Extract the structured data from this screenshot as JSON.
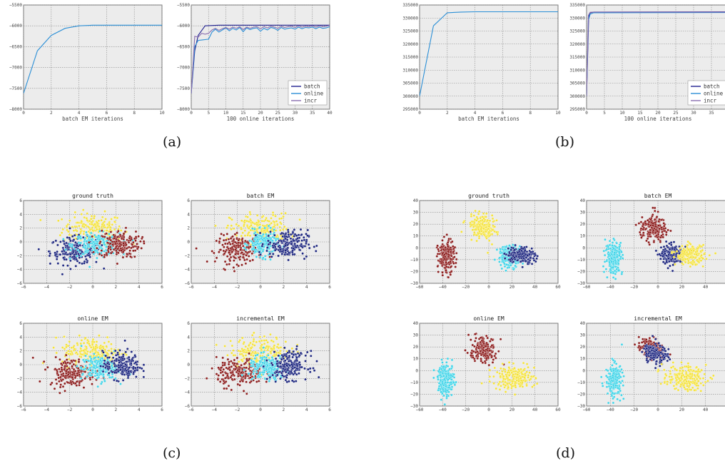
{
  "panel_labels": [
    "(a)",
    "(b)",
    "(c)",
    "(d)"
  ],
  "legend_labels": [
    "batch",
    "online",
    "incr"
  ],
  "colors": {
    "batch": "#1f1f8f",
    "online": "#2b8fd6",
    "incr": "#8a6fb0",
    "cluster_yellow": "#f4e23a",
    "cluster_cyan": "#3fd4e8",
    "cluster_navy": "#1a237e",
    "cluster_maroon": "#8b1a1a",
    "plot_bg": "#ececec",
    "grid": "#888888"
  },
  "chart_data": [
    {
      "id": "a-left",
      "type": "line",
      "xlabel": "batch EM iterations",
      "ylabel": "",
      "xlim": [
        0,
        10
      ],
      "ylim": [
        -8000,
        -5500
      ],
      "xticks": [
        0,
        2,
        4,
        6,
        8,
        10
      ],
      "yticks": [
        -8000,
        -7500,
        -7000,
        -6500,
        -6000,
        -5500
      ],
      "series": [
        {
          "key": "online",
          "x": [
            0,
            1,
            2,
            3,
            4,
            5,
            6,
            7,
            8,
            9,
            10
          ],
          "y": [
            -7620,
            -6600,
            -6230,
            -6060,
            -6000,
            -5985,
            -5985,
            -5985,
            -5985,
            -5985,
            -5985
          ]
        }
      ]
    },
    {
      "id": "a-right",
      "type": "line",
      "xlabel": "100 online iterations",
      "ylabel": "",
      "xlim": [
        0,
        40
      ],
      "ylim": [
        -8000,
        -5500
      ],
      "xticks": [
        0,
        5,
        10,
        15,
        20,
        25,
        30,
        35,
        40
      ],
      "yticks": [
        -8000,
        -7500,
        -7000,
        -6500,
        -6000,
        -5500
      ],
      "legend": [
        "batch",
        "online",
        "incr"
      ],
      "legend_position": "lower right",
      "series": [
        {
          "name": "batch",
          "key": "batch",
          "x": [
            0,
            1,
            2,
            4,
            8,
            40
          ],
          "y": [
            -7620,
            -6600,
            -6230,
            -6000,
            -5985,
            -5985
          ]
        },
        {
          "name": "online",
          "key": "online",
          "x": [
            0,
            1,
            2,
            3,
            4,
            5,
            6,
            7,
            8,
            9,
            10,
            11,
            12,
            13,
            14,
            15,
            16,
            17,
            18,
            19,
            20,
            21,
            22,
            23,
            24,
            25,
            26,
            27,
            28,
            29,
            30,
            31,
            32,
            33,
            34,
            35,
            36,
            37,
            38,
            39,
            40
          ],
          "y": [
            -7600,
            -6500,
            -6350,
            -6340,
            -6330,
            -6320,
            -6150,
            -6080,
            -6150,
            -6100,
            -6050,
            -6120,
            -6060,
            -6100,
            -6040,
            -6140,
            -6050,
            -6090,
            -6060,
            -6050,
            -6130,
            -6060,
            -6100,
            -6040,
            -6060,
            -6110,
            -6040,
            -6080,
            -6060,
            -6050,
            -6080,
            -6030,
            -6070,
            -6040,
            -6050,
            -6030,
            -6070,
            -6030,
            -6060,
            -6050,
            -6020
          ]
        },
        {
          "name": "incr",
          "key": "incr",
          "x": [
            0,
            1,
            2,
            3,
            4,
            5,
            6,
            7,
            8,
            9,
            10,
            11,
            12,
            13,
            14,
            15,
            16,
            17,
            18,
            19,
            20,
            21,
            22,
            23,
            24,
            25,
            26,
            27,
            28,
            29,
            30,
            31,
            32,
            33,
            34,
            35,
            36,
            37,
            38,
            39,
            40
          ],
          "y": [
            -7600,
            -6250,
            -6270,
            -6180,
            -6200,
            -6180,
            -6100,
            -6060,
            -6110,
            -6070,
            -6040,
            -6080,
            -6030,
            -6060,
            -6020,
            -6090,
            -6030,
            -6060,
            -6030,
            -6020,
            -6070,
            -6020,
            -6050,
            -6010,
            -6030,
            -6060,
            -6010,
            -6040,
            -6020,
            -6010,
            -6040,
            -6000,
            -6030,
            -6010,
            -6020,
            -6000,
            -6030,
            -6000,
            -6020,
            -6010,
            -5990
          ]
        }
      ]
    },
    {
      "id": "b-left",
      "type": "line",
      "xlabel": "batch EM iterations",
      "ylabel": "",
      "xlim": [
        0,
        10
      ],
      "ylim": [
        295000,
        335000
      ],
      "xticks": [
        0,
        2,
        4,
        6,
        8,
        10
      ],
      "yticks": [
        295000,
        300000,
        305000,
        310000,
        315000,
        320000,
        325000,
        330000,
        335000
      ],
      "series": [
        {
          "key": "online",
          "x": [
            0,
            1,
            2,
            3,
            4,
            5,
            6,
            7,
            8,
            9,
            10
          ],
          "y": [
            300000,
            327000,
            332000,
            332300,
            332400,
            332400,
            332400,
            332400,
            332400,
            332400,
            332400
          ]
        }
      ]
    },
    {
      "id": "b-right",
      "type": "line",
      "xlabel": "100 online iterations",
      "ylabel": "",
      "xlim": [
        0,
        40
      ],
      "ylim": [
        295000,
        335000
      ],
      "xticks": [
        0,
        5,
        10,
        15,
        20,
        25,
        30,
        35,
        40
      ],
      "yticks": [
        295000,
        300000,
        305000,
        310000,
        315000,
        320000,
        325000,
        330000,
        335000
      ],
      "legend": [
        "batch",
        "online",
        "incr"
      ],
      "legend_position": "lower right",
      "series": [
        {
          "name": "batch",
          "key": "batch",
          "x": [
            0,
            0.6,
            1,
            2,
            40
          ],
          "y": [
            300000,
            330500,
            332000,
            332300,
            332400
          ]
        },
        {
          "name": "online",
          "key": "online",
          "x": [
            0,
            0.5,
            1,
            2,
            40
          ],
          "y": [
            300000,
            329000,
            331500,
            332000,
            332100
          ]
        },
        {
          "name": "incr",
          "key": "incr",
          "x": [
            0,
            0.5,
            1,
            2,
            40
          ],
          "y": [
            300000,
            331000,
            332200,
            332300,
            332300
          ]
        }
      ]
    },
    {
      "id": "c-ground-truth",
      "type": "scatter",
      "title": "ground truth",
      "xlim": [
        -6,
        6
      ],
      "ylim": [
        -6,
        6
      ],
      "xticks": [
        -6,
        -4,
        -2,
        0,
        2,
        4,
        6
      ],
      "yticks": [
        -6,
        -4,
        -2,
        0,
        2,
        4,
        6
      ],
      "clusters": [
        {
          "color": "cluster_yellow",
          "cx": 0,
          "cy": 1.9,
          "sx": 1.3,
          "sy": 1.1
        },
        {
          "color": "cluster_navy",
          "cx": -1.5,
          "cy": -1.3,
          "sx": 1.1,
          "sy": 1.0
        },
        {
          "color": "cluster_cyan",
          "cx": 0.3,
          "cy": -0.4,
          "sx": 1.0,
          "sy": 0.8
        },
        {
          "color": "cluster_maroon",
          "cx": 2.3,
          "cy": -0.3,
          "sx": 0.9,
          "sy": 1.0
        }
      ]
    },
    {
      "id": "c-batch-em",
      "type": "scatter",
      "title": "batch EM",
      "xlim": [
        -6,
        6
      ],
      "ylim": [
        -6,
        6
      ],
      "xticks": [
        -6,
        -4,
        -2,
        0,
        2,
        4,
        6
      ],
      "yticks": [
        -6,
        -4,
        -2,
        0,
        2,
        4,
        6
      ],
      "clusters": [
        {
          "color": "cluster_yellow",
          "cx": 0,
          "cy": 1.9,
          "sx": 1.3,
          "sy": 1.1
        },
        {
          "color": "cluster_maroon",
          "cx": -1.8,
          "cy": -1.1,
          "sx": 1.0,
          "sy": 1.0
        },
        {
          "color": "cluster_cyan",
          "cx": 0.2,
          "cy": -0.3,
          "sx": 0.6,
          "sy": 0.9
        },
        {
          "color": "cluster_navy",
          "cx": 2.3,
          "cy": -0.3,
          "sx": 0.9,
          "sy": 1.0
        }
      ]
    },
    {
      "id": "c-online-em",
      "type": "scatter",
      "title": "online EM",
      "xlim": [
        -6,
        6
      ],
      "ylim": [
        -6,
        6
      ],
      "xticks": [
        -6,
        -4,
        -2,
        0,
        2,
        4,
        6
      ],
      "yticks": [
        -6,
        -4,
        -2,
        0,
        2,
        4,
        6
      ],
      "clusters": [
        {
          "color": "cluster_yellow",
          "cx": 0,
          "cy": 1.9,
          "sx": 1.3,
          "sy": 1.1
        },
        {
          "color": "cluster_maroon",
          "cx": -1.8,
          "cy": -1.1,
          "sx": 1.0,
          "sy": 1.0
        },
        {
          "color": "cluster_cyan",
          "cx": 0.6,
          "cy": -0.5,
          "sx": 0.8,
          "sy": 0.9
        },
        {
          "color": "cluster_navy",
          "cx": 2.5,
          "cy": -0.1,
          "sx": 0.8,
          "sy": 1.0
        }
      ]
    },
    {
      "id": "c-incremental-em",
      "type": "scatter",
      "title": "incremental EM",
      "xlim": [
        -6,
        6
      ],
      "ylim": [
        -6,
        6
      ],
      "xticks": [
        -6,
        -4,
        -2,
        0,
        2,
        4,
        6
      ],
      "yticks": [
        -6,
        -4,
        -2,
        0,
        2,
        4,
        6
      ],
      "clusters": [
        {
          "color": "cluster_yellow",
          "cx": 0,
          "cy": 1.9,
          "sx": 1.3,
          "sy": 1.1
        },
        {
          "color": "cluster_maroon",
          "cx": -1.8,
          "cy": -1.1,
          "sx": 1.0,
          "sy": 1.0
        },
        {
          "color": "cluster_cyan",
          "cx": 0.6,
          "cy": -0.5,
          "sx": 0.8,
          "sy": 0.9
        },
        {
          "color": "cluster_navy",
          "cx": 2.5,
          "cy": -0.1,
          "sx": 0.8,
          "sy": 1.0
        }
      ]
    },
    {
      "id": "d-ground-truth",
      "type": "scatter",
      "title": "ground truth",
      "xlim": [
        -60,
        60
      ],
      "ylim": [
        -30,
        40
      ],
      "xticks": [
        -60,
        -40,
        -20,
        0,
        20,
        40,
        60
      ],
      "yticks": [
        -30,
        -20,
        -10,
        0,
        10,
        20,
        30,
        40
      ],
      "clusters": [
        {
          "color": "cluster_yellow",
          "cx": -5,
          "cy": 17,
          "sx": 6,
          "sy": 5,
          "rot": -0.6
        },
        {
          "color": "cluster_maroon",
          "cx": -37,
          "cy": -8,
          "sx": 3.5,
          "sy": 7
        },
        {
          "color": "cluster_cyan",
          "cx": 18,
          "cy": -7,
          "sx": 5,
          "sy": 4.5
        },
        {
          "color": "cluster_navy",
          "cx": 28,
          "cy": -6,
          "sx": 6,
          "sy": 3.5
        }
      ]
    },
    {
      "id": "d-batch-em",
      "type": "scatter",
      "title": "batch EM",
      "xlim": [
        -60,
        60
      ],
      "ylim": [
        -30,
        40
      ],
      "xticks": [
        -60,
        -40,
        -20,
        0,
        20,
        40,
        60
      ],
      "yticks": [
        -30,
        -20,
        -10,
        0,
        10,
        20,
        30,
        40
      ],
      "clusters": [
        {
          "color": "cluster_maroon",
          "cx": -5,
          "cy": 17,
          "sx": 6,
          "sy": 5,
          "rot": -0.6
        },
        {
          "color": "cluster_cyan",
          "cx": -37,
          "cy": -8,
          "sx": 3.5,
          "sy": 7
        },
        {
          "color": "cluster_navy",
          "cx": 12,
          "cy": -6,
          "sx": 4.5,
          "sy": 4
        },
        {
          "color": "cluster_yellow",
          "cx": 27,
          "cy": -6,
          "sx": 6,
          "sy": 4
        }
      ]
    },
    {
      "id": "d-online-em",
      "type": "scatter",
      "title": "online EM",
      "xlim": [
        -60,
        60
      ],
      "ylim": [
        -30,
        40
      ],
      "xticks": [
        -60,
        -40,
        -20,
        0,
        20,
        40,
        60
      ],
      "yticks": [
        -30,
        -20,
        -10,
        0,
        10,
        20,
        30,
        40
      ],
      "clusters": [
        {
          "color": "cluster_maroon",
          "cx": -5,
          "cy": 17,
          "sx": 6,
          "sy": 5,
          "rot": -0.6
        },
        {
          "color": "cluster_cyan",
          "cx": -37,
          "cy": -8,
          "sx": 3.5,
          "sy": 7
        },
        {
          "color": "cluster_yellow",
          "cx": 22,
          "cy": -6,
          "sx": 9,
          "sy": 5
        }
      ]
    },
    {
      "id": "d-incremental-em",
      "type": "scatter",
      "title": "incremental EM",
      "xlim": [
        -60,
        60
      ],
      "ylim": [
        -30,
        40
      ],
      "xticks": [
        -60,
        -40,
        -20,
        0,
        20,
        40,
        60
      ],
      "yticks": [
        -30,
        -20,
        -10,
        0,
        10,
        20,
        30,
        40
      ],
      "clusters": [
        {
          "color": "cluster_maroon",
          "cx": -6,
          "cy": 19,
          "sx": 5,
          "sy": 4,
          "rot": -0.6
        },
        {
          "color": "cluster_navy",
          "cx": -2,
          "cy": 14,
          "sx": 4.5,
          "sy": 3.5,
          "rot": -0.6
        },
        {
          "color": "cluster_cyan",
          "cx": -37,
          "cy": -8,
          "sx": 3.5,
          "sy": 7
        },
        {
          "color": "cluster_yellow",
          "cx": 22,
          "cy": -6,
          "sx": 9,
          "sy": 5
        }
      ]
    }
  ]
}
